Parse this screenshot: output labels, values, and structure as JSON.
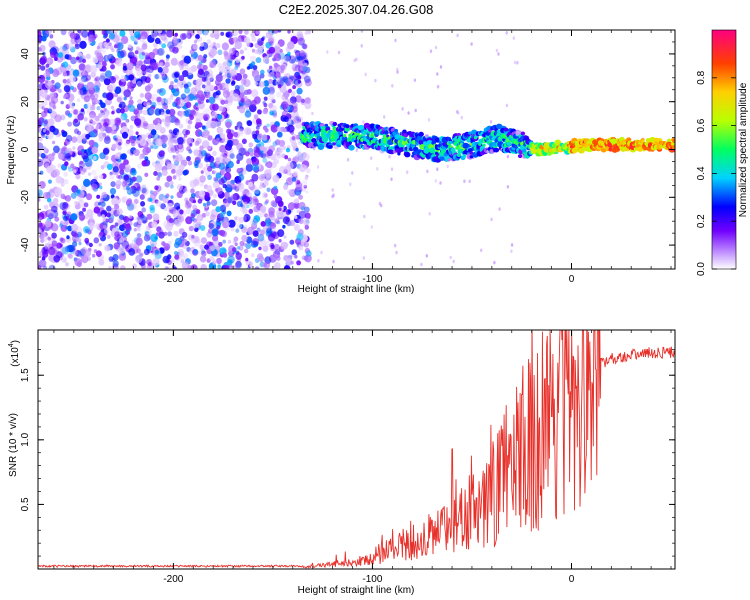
{
  "title": "C2E2.2025.307.04.26.G08",
  "chart_data": [
    {
      "type": "heatmap",
      "xlabel": "Height of straight line (km)",
      "ylabel": "Frequency (Hz)",
      "xlim": [
        -268,
        52
      ],
      "ylim": [
        -50,
        50
      ],
      "x_ticks": [
        -200,
        -100,
        0
      ],
      "y_ticks": [
        -40,
        -20,
        0,
        20,
        40
      ],
      "colorbar": {
        "label": "Normalized spectral amplitude",
        "range": [
          0.0,
          1.0
        ],
        "ticks": [
          0.0,
          0.2,
          0.4,
          0.6,
          0.8
        ],
        "colors": [
          "#ffffff",
          "#c9a0ff",
          "#7000ff",
          "#0000ff",
          "#00d2ff",
          "#00ff60",
          "#b8ff00",
          "#ffd000",
          "#ff4000",
          "#ff0080"
        ]
      },
      "ridge": [
        {
          "x": -135,
          "f": 6
        },
        {
          "x": -120,
          "f": 6
        },
        {
          "x": -100,
          "f": 5
        },
        {
          "x": -80,
          "f": 2
        },
        {
          "x": -65,
          "f": 0
        },
        {
          "x": -50,
          "f": 2
        },
        {
          "x": -35,
          "f": 5
        },
        {
          "x": -25,
          "f": 2
        },
        {
          "x": -18,
          "f": 0
        },
        {
          "x": -5,
          "f": 1
        },
        {
          "x": 10,
          "f": 2
        },
        {
          "x": 30,
          "f": 2
        },
        {
          "x": 52,
          "f": 2
        }
      ]
    },
    {
      "type": "line",
      "xlabel": "Height of straight line (km)",
      "ylabel": "SNR (10 * v/v)",
      "y_multiplier": "(x10",
      "y_multiplier_exp": "4",
      "y_multiplier_close": ")",
      "xlim": [
        -268,
        52
      ],
      "ylim": [
        0,
        1.85
      ],
      "x_ticks": [
        -200,
        -100,
        0
      ],
      "y_ticks": [
        0.5,
        1.0,
        1.5
      ],
      "y_tick_labels": [
        "0.5",
        "1.0",
        "1.5"
      ],
      "color": "#e8302a",
      "envelope": [
        {
          "x": -268,
          "y": 0.02
        },
        {
          "x": -135,
          "y": 0.02
        },
        {
          "x": -120,
          "y": 0.06
        },
        {
          "x": -100,
          "y": 0.12
        },
        {
          "x": -80,
          "y": 0.25
        },
        {
          "x": -60,
          "y": 0.4
        },
        {
          "x": -40,
          "y": 0.65
        },
        {
          "x": -20,
          "y": 1.1
        },
        {
          "x": 0,
          "y": 1.4
        },
        {
          "x": 10,
          "y": 1.55
        },
        {
          "x": 20,
          "y": 1.63
        },
        {
          "x": 35,
          "y": 1.67
        },
        {
          "x": 52,
          "y": 1.68
        }
      ],
      "spikes": [
        {
          "x": -60,
          "y": 0.93
        },
        {
          "x": -25,
          "y": 1.35
        },
        {
          "x": -10,
          "y": 1.18
        },
        {
          "x": 6,
          "y": 1.9
        },
        {
          "x": 15,
          "y": 1.63
        }
      ]
    }
  ]
}
